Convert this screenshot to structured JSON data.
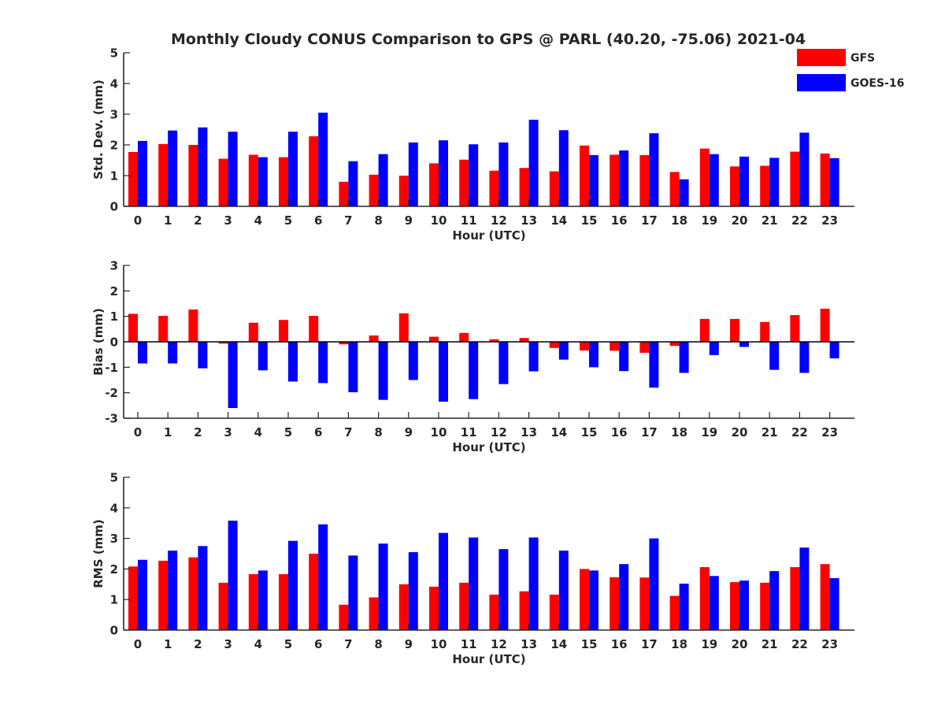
{
  "chart_data": {
    "title": "Monthly Cloudy CONUS Comparison to GPS @ PARL (40.20, -75.06) 2021-04",
    "type": "bar",
    "legend": {
      "placement": "top-right",
      "entries": [
        {
          "name": "GFS",
          "color": "#ff0000"
        },
        {
          "name": "GOES-16",
          "color": "#0000ff"
        }
      ]
    },
    "panels": [
      {
        "type": "bar",
        "xlabel": "Hour (UTC)",
        "ylabel": "Std. Dev. (mm)",
        "ylim": [
          0,
          5
        ],
        "yticks": [
          "0",
          "1",
          "2",
          "3",
          "4",
          "5"
        ],
        "categories": [
          "0",
          "1",
          "2",
          "3",
          "4",
          "5",
          "6",
          "7",
          "8",
          "9",
          "10",
          "11",
          "12",
          "13",
          "14",
          "15",
          "16",
          "17",
          "18",
          "19",
          "20",
          "21",
          "22",
          "23"
        ],
        "series": [
          {
            "name": "GFS",
            "color": "#ff0000",
            "values": [
              1.77,
              2.03,
              2.0,
              1.55,
              1.68,
              1.6,
              2.28,
              0.8,
              1.03,
              1.0,
              1.4,
              1.52,
              1.16,
              1.25,
              1.14,
              1.98,
              1.68,
              1.67,
              1.12,
              1.88,
              1.3,
              1.32,
              1.78,
              1.72
            ]
          },
          {
            "name": "GOES-16",
            "color": "#0000ff",
            "values": [
              2.13,
              2.47,
              2.57,
              2.43,
              1.6,
              2.43,
              3.05,
              1.47,
              1.7,
              2.08,
              2.15,
              2.02,
              2.08,
              2.82,
              2.48,
              1.67,
              1.82,
              2.38,
              0.88,
              1.7,
              1.62,
              1.58,
              2.4,
              1.57
            ]
          }
        ]
      },
      {
        "type": "bar",
        "xlabel": "Hour (UTC)",
        "ylabel": "Bias (mm)",
        "ylim": [
          -3,
          3
        ],
        "yticks": [
          "-3",
          "-2",
          "-1",
          "0",
          "1",
          "2",
          "3"
        ],
        "categories": [
          "0",
          "1",
          "2",
          "3",
          "4",
          "5",
          "6",
          "7",
          "8",
          "9",
          "10",
          "11",
          "12",
          "13",
          "14",
          "15",
          "16",
          "17",
          "18",
          "19",
          "20",
          "21",
          "22",
          "23"
        ],
        "series": [
          {
            "name": "GFS",
            "color": "#ff0000",
            "values": [
              1.1,
              1.02,
              1.27,
              -0.07,
              0.75,
              0.86,
              1.02,
              -0.1,
              0.25,
              1.12,
              0.2,
              0.35,
              0.1,
              0.15,
              -0.24,
              -0.34,
              -0.35,
              -0.43,
              -0.16,
              0.9,
              0.9,
              0.78,
              1.05,
              1.3
            ]
          },
          {
            "name": "GOES-16",
            "color": "#0000ff",
            "values": [
              -0.85,
              -0.85,
              -1.04,
              -2.6,
              -1.12,
              -1.56,
              -1.62,
              -1.98,
              -2.28,
              -1.5,
              -2.35,
              -2.25,
              -1.66,
              -1.16,
              -0.7,
              -1.0,
              -1.15,
              -1.8,
              -1.22,
              -0.52,
              -0.2,
              -1.1,
              -1.22,
              -0.65
            ]
          }
        ]
      },
      {
        "type": "bar",
        "xlabel": "Hour (UTC)",
        "ylabel": "RMS (mm)",
        "ylim": [
          0,
          5
        ],
        "yticks": [
          "0",
          "1",
          "2",
          "3",
          "4",
          "5"
        ],
        "categories": [
          "0",
          "1",
          "2",
          "3",
          "4",
          "5",
          "6",
          "7",
          "8",
          "9",
          "10",
          "11",
          "12",
          "13",
          "14",
          "15",
          "16",
          "17",
          "18",
          "19",
          "20",
          "21",
          "22",
          "23"
        ],
        "series": [
          {
            "name": "GFS",
            "color": "#ff0000",
            "values": [
              2.08,
              2.27,
              2.38,
              1.55,
              1.83,
              1.83,
              2.5,
              0.83,
              1.07,
              1.5,
              1.42,
              1.55,
              1.16,
              1.27,
              1.16,
              2.0,
              1.73,
              1.72,
              1.12,
              2.06,
              1.57,
              1.55,
              2.06,
              2.16
            ]
          },
          {
            "name": "GOES-16",
            "color": "#0000ff",
            "values": [
              2.3,
              2.6,
              2.75,
              3.58,
              1.95,
              2.92,
              3.46,
              2.44,
              2.83,
              2.55,
              3.18,
              3.03,
              2.65,
              3.03,
              2.6,
              1.95,
              2.16,
              3.0,
              1.52,
              1.77,
              1.62,
              1.93,
              2.7,
              1.7
            ]
          }
        ]
      }
    ]
  }
}
